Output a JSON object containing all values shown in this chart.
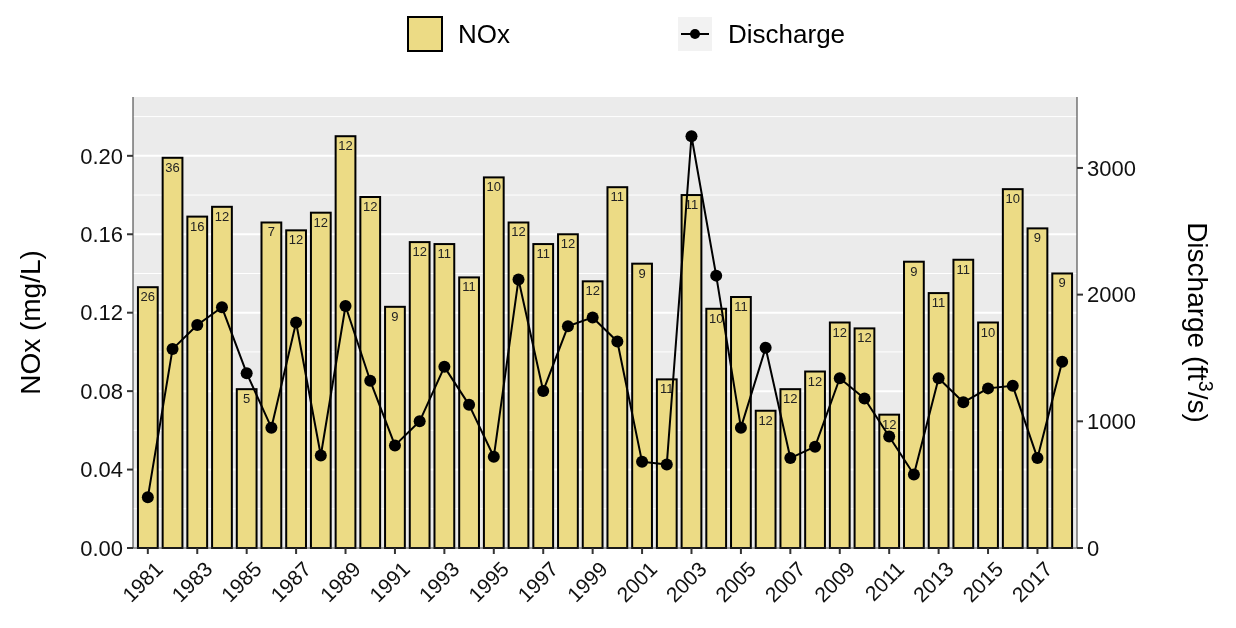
{
  "chart_data": {
    "type": "bar",
    "x": [
      1981,
      1982,
      1983,
      1984,
      1985,
      1986,
      1987,
      1988,
      1989,
      1990,
      1991,
      1992,
      1993,
      1994,
      1995,
      1996,
      1997,
      1998,
      1999,
      2000,
      2001,
      2002,
      2003,
      2004,
      2005,
      2006,
      2007,
      2008,
      2009,
      2010,
      2011,
      2012,
      2013,
      2014,
      2015,
      2016,
      2017,
      2018
    ],
    "xlim": [
      1980.4,
      2018.6
    ],
    "xticks": [
      1981,
      1983,
      1985,
      1987,
      1989,
      1991,
      1993,
      1995,
      1997,
      1999,
      2001,
      2003,
      2005,
      2007,
      2009,
      2011,
      2013,
      2015,
      2017
    ],
    "series": [
      {
        "name": "NOx",
        "color": "#ecdb85",
        "values": [
          0.133,
          0.199,
          0.169,
          0.174,
          0.081,
          0.166,
          0.162,
          0.171,
          0.21,
          0.179,
          0.123,
          0.156,
          0.155,
          0.138,
          0.189,
          0.166,
          0.155,
          0.16,
          0.136,
          0.184,
          0.145,
          0.086,
          0.18,
          0.122,
          0.128,
          0.07,
          0.081,
          0.09,
          0.115,
          0.112,
          0.068,
          0.146,
          0.13,
          0.147,
          0.115,
          0.183,
          0.163,
          0.14
        ]
      },
      {
        "name": "Discharge",
        "type": "line",
        "axis": "y2",
        "color": "#000000",
        "values": [
          400,
          1570,
          1760,
          1900,
          1380,
          950,
          1780,
          730,
          1910,
          1320,
          810,
          1000,
          1430,
          1130,
          720,
          2120,
          1240,
          1750,
          1820,
          1630,
          680,
          660,
          3250,
          2150,
          950,
          1580,
          710,
          800,
          1340,
          1180,
          880,
          580,
          1340,
          1150,
          1260,
          1280,
          710,
          1470
        ]
      }
    ],
    "annotations": [
      {
        "text": "26",
        "x": 1981,
        "y": 0.133
      },
      {
        "text": "36",
        "x": 1982,
        "y": 0.199
      },
      {
        "text": "16",
        "x": 1983,
        "y": 0.169
      },
      {
        "text": "12",
        "x": 1984,
        "y": 0.174
      },
      {
        "text": "5",
        "x": 1985,
        "y": 0.081
      },
      {
        "text": "7",
        "x": 1986,
        "y": 0.166
      },
      {
        "text": "12",
        "x": 1987,
        "y": 0.162
      },
      {
        "text": "12",
        "x": 1988,
        "y": 0.171
      },
      {
        "text": "12",
        "x": 1989,
        "y": 0.21
      },
      {
        "text": "12",
        "x": 1990,
        "y": 0.179
      },
      {
        "text": "9",
        "x": 1991,
        "y": 0.123
      },
      {
        "text": "12",
        "x": 1992,
        "y": 0.156
      },
      {
        "text": "11",
        "x": 1993,
        "y": 0.155
      },
      {
        "text": "11",
        "x": 1994,
        "y": 0.138
      },
      {
        "text": "10",
        "x": 1995,
        "y": 0.189
      },
      {
        "text": "12",
        "x": 1996,
        "y": 0.166
      },
      {
        "text": "11",
        "x": 1997,
        "y": 0.155
      },
      {
        "text": "12",
        "x": 1998,
        "y": 0.16
      },
      {
        "text": "12",
        "x": 1999,
        "y": 0.136
      },
      {
        "text": "11",
        "x": 2000,
        "y": 0.184
      },
      {
        "text": "9",
        "x": 2001,
        "y": 0.145
      },
      {
        "text": "11",
        "x": 2002,
        "y": 0.086
      },
      {
        "text": "11",
        "x": 2003,
        "y": 0.18
      },
      {
        "text": "10",
        "x": 2004,
        "y": 0.122
      },
      {
        "text": "11",
        "x": 2005,
        "y": 0.128
      },
      {
        "text": "12",
        "x": 2006,
        "y": 0.07
      },
      {
        "text": "12",
        "x": 2007,
        "y": 0.081
      },
      {
        "text": "12",
        "x": 2008,
        "y": 0.09
      },
      {
        "text": "12",
        "x": 2009,
        "y": 0.115
      },
      {
        "text": "12",
        "x": 2010,
        "y": 0.112
      },
      {
        "text": "12",
        "x": 2011,
        "y": 0.068
      },
      {
        "text": "9",
        "x": 2012,
        "y": 0.146
      },
      {
        "text": "11",
        "x": 2013,
        "y": 0.13
      },
      {
        "text": "11",
        "x": 2014,
        "y": 0.147
      },
      {
        "text": "10",
        "x": 2015,
        "y": 0.115
      },
      {
        "text": "10",
        "x": 2016,
        "y": 0.183
      },
      {
        "text": "9",
        "x": 2017,
        "y": 0.163
      },
      {
        "text": "9",
        "x": 2018,
        "y": 0.14
      }
    ],
    "ylabel": "NOx (mg/L)",
    "y2label": "Discharge (ft$^{3}$/s)",
    "ylim": [
      0,
      0.23
    ],
    "yticks": [
      {
        "value": 0,
        "label": "0.00"
      },
      {
        "value": 0.04,
        "label": "0.04"
      },
      {
        "value": 0.08,
        "label": "0.08"
      },
      {
        "value": 0.12,
        "label": "0.12"
      },
      {
        "value": 0.16,
        "label": "0.16"
      },
      {
        "value": 0.2,
        "label": "0.20"
      }
    ],
    "y2lim": [
      0,
      3560
    ],
    "y2ticks": [
      0,
      1000,
      2000,
      3000
    ],
    "grid": "y",
    "legend": "top",
    "marker": "circle",
    "line_style": "solid"
  }
}
